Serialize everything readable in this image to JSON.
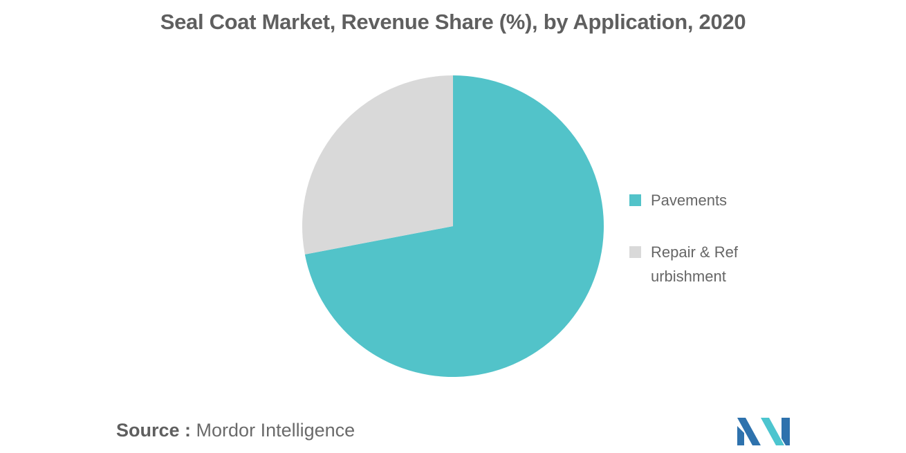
{
  "chart_data": {
    "type": "pie",
    "title": "Seal Coat Market, Revenue Share (%), by Application, 2020",
    "slices": [
      {
        "label": "Pavements",
        "value": 72,
        "color": "#52c3c9"
      },
      {
        "label": "Repair & Refurbishment",
        "value": 28,
        "color": "#d9d9d9"
      }
    ],
    "legend": {
      "position": "right",
      "entries": [
        "Pavements",
        "Repair & Refurbishment"
      ]
    },
    "data_labels": false
  },
  "footer": {
    "source_label": "Source :",
    "source_text": "Mordor Intelligence"
  },
  "logo": {
    "colors": {
      "dark": "#2e72ad",
      "light": "#4cc5cf"
    }
  }
}
